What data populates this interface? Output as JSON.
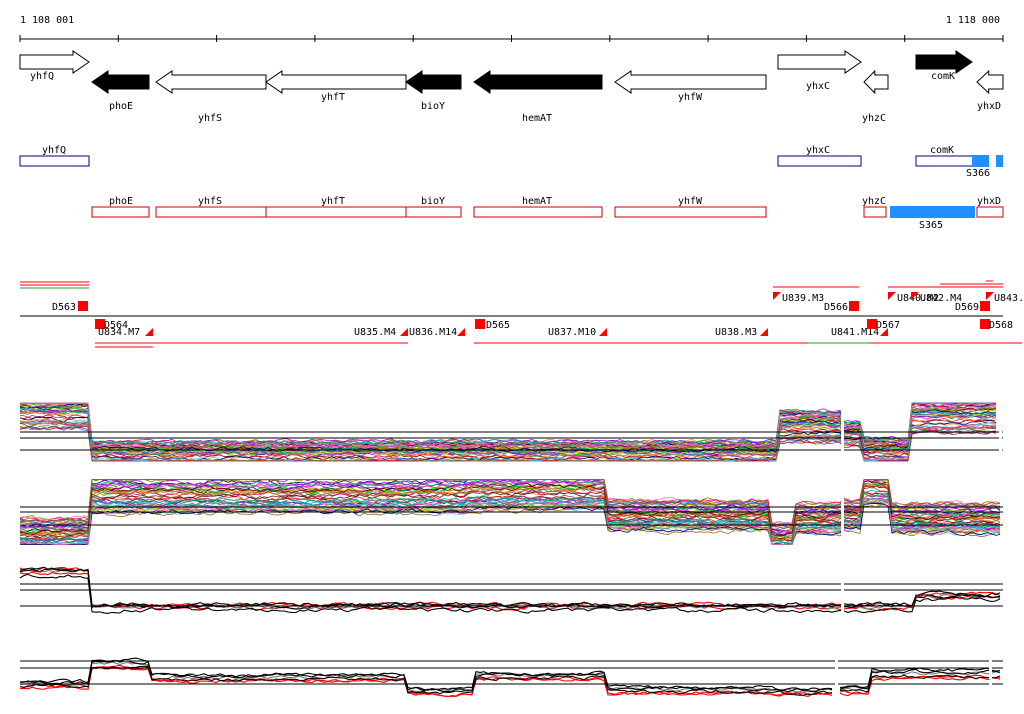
{
  "coords": {
    "start": "1 108 001",
    "end": "1 118 000"
  },
  "colors": {
    "arrow_fill": "#000000",
    "gene_box": "#000080",
    "utr_box": "#cc0000",
    "sig_box": "#1e90ff",
    "marker": "#ff0000",
    "trace_black": "#000000",
    "trace_red": "#ff0000",
    "trace_gray": "#777777"
  },
  "genes": [
    {
      "label": "yhfQ",
      "strand": "+",
      "filled": false
    },
    {
      "label": "phoE",
      "strand": "-",
      "filled": true
    },
    {
      "label": "yhfS",
      "strand": "-",
      "filled": false
    },
    {
      "label": "yhfT",
      "strand": "-",
      "filled": false
    },
    {
      "label": "bioY",
      "strand": "-",
      "filled": true
    },
    {
      "label": "hemAT",
      "strand": "-",
      "filled": true
    },
    {
      "label": "yhfW",
      "strand": "-",
      "filled": false
    },
    {
      "label": "yhxC",
      "strand": "+",
      "filled": false
    },
    {
      "label": "yhzC",
      "strand": "-",
      "filled": false
    },
    {
      "label": "comK",
      "strand": "+",
      "filled": true
    },
    {
      "label": "yhxD",
      "strand": "-",
      "filled": false
    }
  ],
  "gene_boxes": [
    {
      "label": "yhfQ"
    },
    {
      "label": "yhxC"
    },
    {
      "label": "comK"
    }
  ],
  "sig_labels": [
    "S366",
    "S365"
  ],
  "utr_boxes": [
    {
      "label": "phoE"
    },
    {
      "label": "yhfS"
    },
    {
      "label": "yhfT"
    },
    {
      "label": "bioY"
    },
    {
      "label": "hemAT"
    },
    {
      "label": "yhfW"
    },
    {
      "label": "yhzC"
    },
    {
      "label": "yhxD"
    }
  ],
  "segments": [
    {
      "label": "D563"
    },
    {
      "label": "D564"
    },
    {
      "label": "U834.M7"
    },
    {
      "label": "U835.M4"
    },
    {
      "label": "U836.M14"
    },
    {
      "label": "D565"
    },
    {
      "label": "U837.M10"
    },
    {
      "label": "U838.M3"
    },
    {
      "label": "U839.M3"
    },
    {
      "label": "D566"
    },
    {
      "label": "U841.M14"
    },
    {
      "label": "D567"
    },
    {
      "label": "U840.M2"
    },
    {
      "label": "U842.M4"
    },
    {
      "label": "D569"
    },
    {
      "label": "U843."
    },
    {
      "label": "D568"
    }
  ]
}
